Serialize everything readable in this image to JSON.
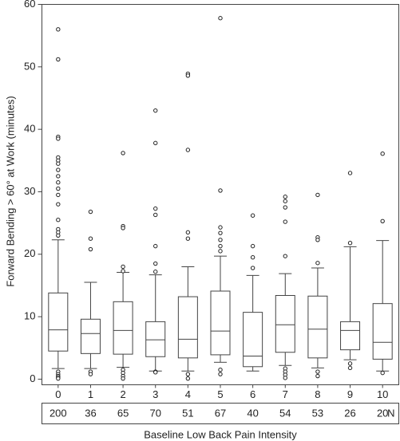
{
  "chart_data": {
    "type": "box",
    "xlabel": "Baseline Low Back Pain Intensity",
    "ylabel": "Forward Bending > 60° at Work (minutes)",
    "categories": [
      "0",
      "1",
      "2",
      "3",
      "4",
      "5",
      "6",
      "7",
      "8",
      "9",
      "10"
    ],
    "boxes": [
      {
        "whisker_low": 1.7,
        "q1": 4.5,
        "median": 7.9,
        "q3": 13.8,
        "whisker_high": 22.3,
        "outliers": [
          56,
          51.2,
          38.8,
          38.5,
          35.5,
          35,
          34.5,
          33.5,
          32.5,
          31.5,
          30.5,
          29.5,
          28,
          25.5,
          24,
          23.5,
          23,
          1.2,
          0.8,
          0.5,
          0.3,
          0.1
        ]
      },
      {
        "whisker_low": 1.7,
        "q1": 4.1,
        "median": 7.3,
        "q3": 9.6,
        "whisker_high": 15.5,
        "outliers": [
          26.8,
          22.5,
          20.8,
          1.2,
          0.8
        ]
      },
      {
        "whisker_low": 1.9,
        "q1": 4.0,
        "median": 7.8,
        "q3": 12.4,
        "whisker_high": 17.1,
        "outliers": [
          36.2,
          24.5,
          24.2,
          18,
          17.3,
          1.5,
          1,
          0.5,
          0.1
        ]
      },
      {
        "whisker_low": 1.3,
        "q1": 3.6,
        "median": 6.3,
        "q3": 9.2,
        "whisker_high": 16.7,
        "outliers": [
          43,
          37.8,
          27.3,
          26.3,
          21.3,
          18.5,
          17.2,
          1.2,
          1.1
        ]
      },
      {
        "whisker_low": 1.3,
        "q1": 3.4,
        "median": 6.4,
        "q3": 13.2,
        "whisker_high": 18,
        "outliers": [
          48.9,
          48.6,
          36.7,
          23.5,
          22.5,
          0.8,
          0.1
        ]
      },
      {
        "whisker_low": 2.7,
        "q1": 3.9,
        "median": 7.7,
        "q3": 14.1,
        "whisker_high": 19.7,
        "outliers": [
          57.8,
          30.2,
          24.3,
          23.4,
          22.3,
          21.3,
          20.5,
          1.5,
          0.8
        ]
      },
      {
        "whisker_low": 1.3,
        "q1": 2.0,
        "median": 3.7,
        "q3": 10.7,
        "whisker_high": 16.6,
        "outliers": [
          26.2,
          21.3,
          19.5,
          17.8
        ]
      },
      {
        "whisker_low": 2.2,
        "q1": 4.3,
        "median": 8.7,
        "q3": 13.4,
        "whisker_high": 16.9,
        "outliers": [
          29.2,
          28.5,
          27.5,
          25.2,
          19.7,
          1.7,
          1.2,
          0.7,
          0.2
        ]
      },
      {
        "whisker_low": 1.8,
        "q1": 3.4,
        "median": 8.0,
        "q3": 13.3,
        "whisker_high": 17.8,
        "outliers": [
          29.5,
          22.7,
          22.3,
          18.6,
          1.2,
          0.5
        ]
      },
      {
        "whisker_low": 3.1,
        "q1": 4.7,
        "median": 7.8,
        "q3": 9.2,
        "whisker_high": 21.2,
        "outliers": [
          33,
          21.8,
          2.5,
          1.8
        ]
      },
      {
        "whisker_low": 1.3,
        "q1": 3.2,
        "median": 5.9,
        "q3": 12.1,
        "whisker_high": 22.2,
        "outliers": [
          36.1,
          25.3,
          1.0
        ]
      }
    ],
    "n": [
      200,
      36,
      65,
      70,
      51,
      67,
      40,
      54,
      53,
      26,
      20
    ],
    "n_label": "N",
    "ylim": [
      -0.9,
      60
    ],
    "yticks": [
      0,
      10,
      20,
      30,
      40,
      50,
      60
    ]
  }
}
